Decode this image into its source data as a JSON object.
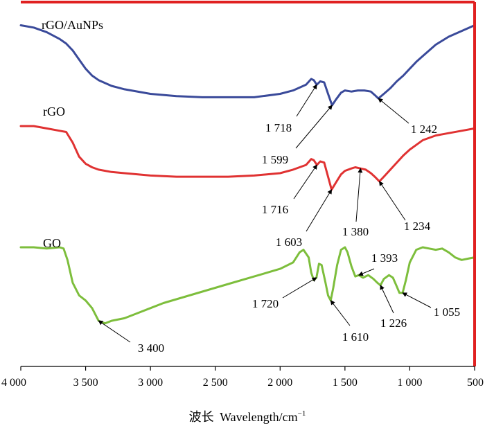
{
  "chart_data": {
    "type": "line",
    "title": "",
    "xlabel_cn": "波长",
    "xlabel_en": "Wavelength/cm",
    "xlabel_sup": "−1",
    "ylabel": "",
    "xlim": [
      4000,
      500
    ],
    "x_reversed": true,
    "y_axis_shown": false,
    "grid": false,
    "x_ticks": [
      4000,
      3500,
      3000,
      2500,
      2000,
      1500,
      1000,
      500
    ],
    "x_tick_labels": [
      "4 000",
      "3 500",
      "3 000",
      "2 500",
      "2 000",
      "1 500",
      "1 000",
      "500"
    ],
    "colors": {
      "rGO/AuNPs": "#3a4a9a",
      "rGO": "#e03232",
      "GO": "#7dbe3c",
      "frame": "#e02020"
    },
    "series": [
      {
        "name": "rGO/AuNPs",
        "label": "rGO/AuNPs",
        "color": "#3a4a9a",
        "x": [
          4000,
          3900,
          3800,
          3700,
          3650,
          3600,
          3550,
          3500,
          3450,
          3400,
          3300,
          3200,
          3000,
          2800,
          2600,
          2400,
          2200,
          2000,
          1900,
          1800,
          1760,
          1740,
          1718,
          1690,
          1660,
          1630,
          1599,
          1570,
          1530,
          1500,
          1450,
          1400,
          1350,
          1300,
          1270,
          1242,
          1200,
          1150,
          1100,
          1050,
          1000,
          950,
          900,
          850,
          800,
          700,
          600,
          500
        ],
        "y": [
          0.9,
          0.88,
          0.84,
          0.78,
          0.74,
          0.68,
          0.6,
          0.52,
          0.46,
          0.42,
          0.37,
          0.34,
          0.3,
          0.28,
          0.27,
          0.27,
          0.27,
          0.3,
          0.33,
          0.38,
          0.43,
          0.42,
          0.38,
          0.41,
          0.4,
          0.3,
          0.2,
          0.25,
          0.31,
          0.33,
          0.32,
          0.33,
          0.33,
          0.32,
          0.29,
          0.26,
          0.3,
          0.35,
          0.41,
          0.46,
          0.52,
          0.58,
          0.63,
          0.68,
          0.73,
          0.8,
          0.85,
          0.9
        ]
      },
      {
        "name": "rGO",
        "label": "rGO",
        "color": "#e03232",
        "x": [
          4000,
          3900,
          3800,
          3700,
          3650,
          3600,
          3550,
          3500,
          3450,
          3400,
          3300,
          3200,
          3000,
          2800,
          2600,
          2400,
          2200,
          2000,
          1900,
          1800,
          1760,
          1740,
          1716,
          1690,
          1660,
          1630,
          1603,
          1570,
          1530,
          1500,
          1450,
          1420,
          1380,
          1340,
          1300,
          1270,
          1234,
          1200,
          1150,
          1100,
          1050,
          1000,
          950,
          900,
          850,
          800,
          700,
          600,
          500
        ],
        "y": [
          0.9,
          0.9,
          0.88,
          0.86,
          0.85,
          0.76,
          0.64,
          0.58,
          0.55,
          0.53,
          0.51,
          0.5,
          0.48,
          0.47,
          0.47,
          0.47,
          0.48,
          0.5,
          0.53,
          0.57,
          0.62,
          0.61,
          0.57,
          0.6,
          0.59,
          0.47,
          0.36,
          0.42,
          0.49,
          0.52,
          0.54,
          0.55,
          0.54,
          0.53,
          0.5,
          0.47,
          0.43,
          0.47,
          0.53,
          0.59,
          0.65,
          0.7,
          0.74,
          0.78,
          0.8,
          0.82,
          0.84,
          0.86,
          0.88
        ]
      },
      {
        "name": "GO",
        "label": "GO",
        "color": "#7dbe3c",
        "x": [
          4000,
          3900,
          3800,
          3700,
          3670,
          3640,
          3600,
          3550,
          3500,
          3450,
          3400,
          3350,
          3300,
          3200,
          3100,
          3000,
          2900,
          2800,
          2600,
          2400,
          2200,
          2000,
          1900,
          1850,
          1820,
          1780,
          1760,
          1740,
          1720,
          1700,
          1680,
          1650,
          1630,
          1610,
          1590,
          1560,
          1530,
          1500,
          1480,
          1450,
          1420,
          1393,
          1360,
          1320,
          1280,
          1250,
          1226,
          1200,
          1160,
          1130,
          1100,
          1080,
          1055,
          1030,
          1000,
          950,
          900,
          850,
          800,
          750,
          700,
          650,
          600,
          550,
          500
        ],
        "y": [
          0.88,
          0.88,
          0.87,
          0.88,
          0.87,
          0.78,
          0.6,
          0.5,
          0.46,
          0.4,
          0.3,
          0.28,
          0.3,
          0.32,
          0.36,
          0.4,
          0.44,
          0.47,
          0.53,
          0.59,
          0.65,
          0.71,
          0.76,
          0.84,
          0.86,
          0.8,
          0.68,
          0.62,
          0.64,
          0.75,
          0.74,
          0.6,
          0.5,
          0.46,
          0.56,
          0.74,
          0.86,
          0.88,
          0.84,
          0.73,
          0.65,
          0.66,
          0.64,
          0.66,
          0.63,
          0.6,
          0.58,
          0.63,
          0.66,
          0.64,
          0.57,
          0.52,
          0.52,
          0.62,
          0.76,
          0.86,
          0.88,
          0.87,
          0.86,
          0.87,
          0.84,
          0.8,
          0.78,
          0.79,
          0.8
        ]
      }
    ],
    "annotations": [
      {
        "series": "rGO/AuNPs",
        "x": 1718,
        "text": "1 718"
      },
      {
        "series": "rGO/AuNPs",
        "x": 1599,
        "text": "1 599"
      },
      {
        "series": "rGO/AuNPs",
        "x": 1242,
        "text": "1 242"
      },
      {
        "series": "rGO",
        "x": 1716,
        "text": "1 716"
      },
      {
        "series": "rGO",
        "x": 1603,
        "text": "1 603"
      },
      {
        "series": "rGO",
        "x": 1380,
        "text": "1 380"
      },
      {
        "series": "rGO",
        "x": 1234,
        "text": "1 234"
      },
      {
        "series": "GO",
        "x": 1720,
        "text": "1 720"
      },
      {
        "series": "GO",
        "x": 1610,
        "text": "1 610"
      },
      {
        "series": "GO",
        "x": 1393,
        "text": "1 393"
      },
      {
        "series": "GO",
        "x": 1226,
        "text": "1 226"
      },
      {
        "series": "GO",
        "x": 1055,
        "text": "1 055"
      },
      {
        "series": "GO",
        "x": 3400,
        "text": "3 400"
      }
    ]
  }
}
